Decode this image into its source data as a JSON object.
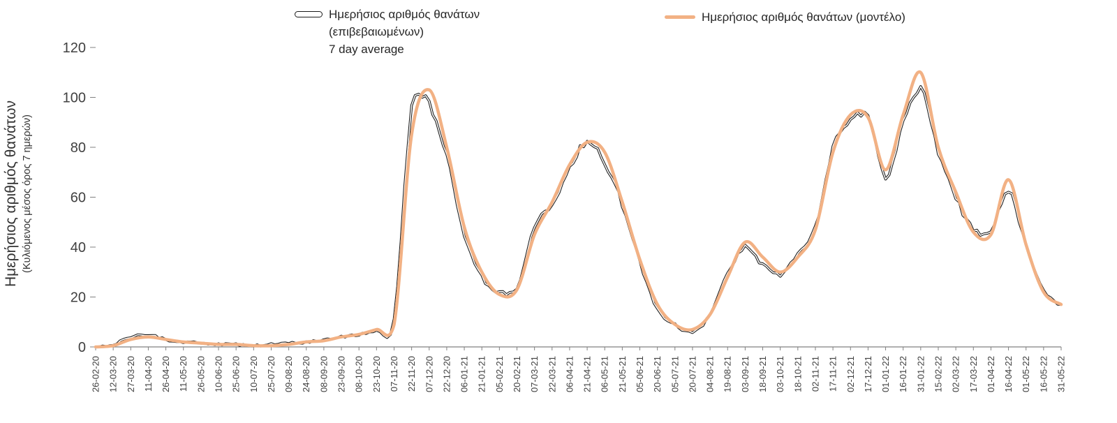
{
  "page": {
    "background": "#ffffff"
  },
  "legend": {
    "position": "top",
    "confirmed": {
      "line1": "Ημερήσιος αριθμός θανάτων",
      "line2": "(επιβεβαιωμένων)",
      "line3": "7 day average",
      "marker_color": "#1a1a1a"
    },
    "model": {
      "label": "Ημερήσιος αριθμός θανάτων (μοντέλο)",
      "marker_color": "#F2B184"
    }
  },
  "y_axis": {
    "title": "Ημερήσιος αριθμός θανάτων",
    "subtitle": "(Κυλιόμενος μέσος όρος 7 ημερών)",
    "ticks": [
      0,
      20,
      40,
      60,
      80,
      100,
      120
    ]
  },
  "chart_data": {
    "type": "line",
    "title": "",
    "xlabel": "",
    "ylabel": "Ημερήσιος αριθμός θανάτων (Κυλιόμενος μέσος όρος 7 ημερών)",
    "ylim": [
      0,
      120
    ],
    "yticks": [
      0,
      20,
      40,
      60,
      80,
      100,
      120
    ],
    "grid": false,
    "legend_position": "top",
    "x_tick_interval_days": 15,
    "categories": [
      "26-02-20",
      "12-03-20",
      "27-03-20",
      "11-04-20",
      "26-04-20",
      "11-05-20",
      "26-05-20",
      "10-06-20",
      "25-06-20",
      "10-07-20",
      "25-07-20",
      "09-08-20",
      "24-08-20",
      "08-09-20",
      "23-09-20",
      "08-10-20",
      "23-10-20",
      "07-11-20",
      "22-11-20",
      "07-12-20",
      "22-12-20",
      "06-01-21",
      "21-01-21",
      "05-02-21",
      "20-02-21",
      "07-03-21",
      "22-03-21",
      "06-04-21",
      "21-04-21",
      "06-05-21",
      "21-05-21",
      "05-06-21",
      "20-06-21",
      "05-07-21",
      "20-07-21",
      "04-08-21",
      "19-08-21",
      "03-09-21",
      "18-09-21",
      "03-10-21",
      "18-10-21",
      "02-11-21",
      "17-11-21",
      "02-12-21",
      "17-12-21",
      "01-01-22",
      "16-01-22",
      "31-01-22",
      "15-02-22",
      "02-03-22",
      "17-03-22",
      "01-04-22",
      "16-04-22",
      "01-05-22",
      "16-05-22",
      "31-05-22"
    ],
    "series": [
      {
        "name": "Ημερήσιος αριθμός θανάτων (επιβεβαιωμένων) 7 day average",
        "color": "#1a1a1a",
        "style": "double-line",
        "values": [
          0,
          1,
          4,
          5,
          3,
          2,
          1.5,
          1,
          1,
          0.5,
          1,
          1.5,
          2,
          3,
          4,
          5,
          7,
          11,
          95,
          97,
          77,
          45,
          28,
          22,
          24,
          48,
          57,
          72,
          82,
          74,
          57,
          34,
          15,
          9,
          6,
          13,
          29,
          40,
          33,
          29,
          37,
          48,
          80,
          90,
          92,
          68,
          90,
          103,
          78,
          60,
          47,
          46,
          63,
          40,
          23,
          17
        ]
      },
      {
        "name": "Ημερήσιος αριθμός θανάτων (μοντέλο)",
        "color": "#F2B184",
        "style": "smooth-thick",
        "values": [
          0,
          0.5,
          3,
          4,
          3,
          2,
          1.5,
          1,
          1,
          0.5,
          0.5,
          1,
          2,
          2.5,
          4,
          5,
          7,
          9,
          85,
          103,
          80,
          48,
          30,
          21,
          23,
          45,
          58,
          73,
          82,
          78,
          58,
          35,
          17,
          9,
          7,
          13,
          28,
          42,
          36,
          30,
          36,
          47,
          78,
          93,
          92,
          71,
          93,
          110,
          80,
          62,
          46,
          45,
          67,
          41,
          22,
          17
        ]
      }
    ]
  }
}
